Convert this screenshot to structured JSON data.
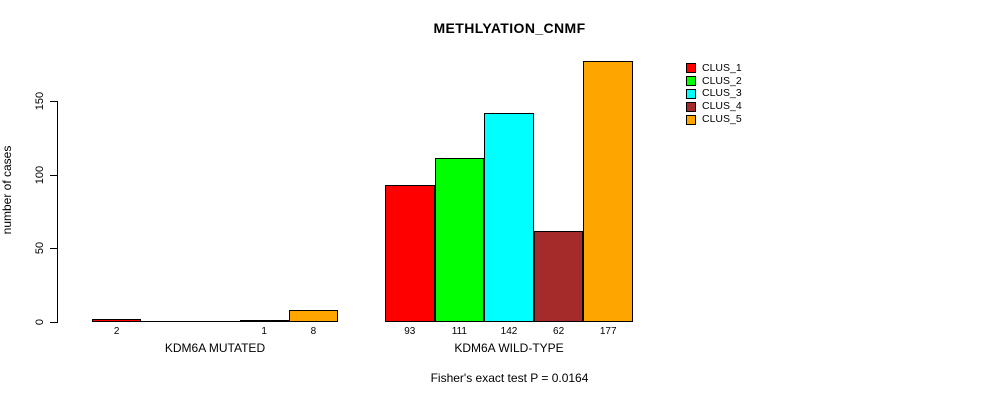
{
  "title": "METHLYATION_CNMF",
  "footer": "Fisher's exact test P = 0.0164",
  "y_axis": {
    "label": "number of cases",
    "ticks": [
      0,
      50,
      100,
      150
    ]
  },
  "chart_data": {
    "type": "bar",
    "title": "METHLYATION_CNMF",
    "xlabel": "",
    "ylabel": "number of cases",
    "categories": [
      "KDM6A MUTATED",
      "KDM6A WILD-TYPE"
    ],
    "series": [
      {
        "name": "CLUS_1",
        "color": "#FF0000",
        "values": [
          2,
          93
        ]
      },
      {
        "name": "CLUS_2",
        "color": "#00FF00",
        "values": [
          0,
          111
        ]
      },
      {
        "name": "CLUS_3",
        "color": "#00FFFF",
        "values": [
          0,
          142
        ]
      },
      {
        "name": "CLUS_4",
        "color": "#A52A2A",
        "values": [
          1,
          62
        ]
      },
      {
        "name": "CLUS_5",
        "color": "#FFA500",
        "values": [
          8,
          177
        ]
      }
    ],
    "bar_value_labels": {
      "KDM6A MUTATED": [
        "2",
        "",
        "",
        "1",
        "8"
      ],
      "KDM6A WILD-TYPE": [
        "93",
        "111",
        "142",
        "62",
        "177"
      ]
    },
    "ylim": [
      0,
      177
    ],
    "yticks": [
      0,
      50,
      100,
      150
    ],
    "grid": false,
    "legend_position": "top-right",
    "annotation": "Fisher's exact test P = 0.0164"
  },
  "legend": {
    "items": [
      {
        "label": "CLUS_1",
        "color": "#FF0000"
      },
      {
        "label": "CLUS_2",
        "color": "#00FF00"
      },
      {
        "label": "CLUS_3",
        "color": "#00FFFF"
      },
      {
        "label": "CLUS_4",
        "color": "#A52A2A"
      },
      {
        "label": "CLUS_5",
        "color": "#FFA500"
      }
    ]
  }
}
